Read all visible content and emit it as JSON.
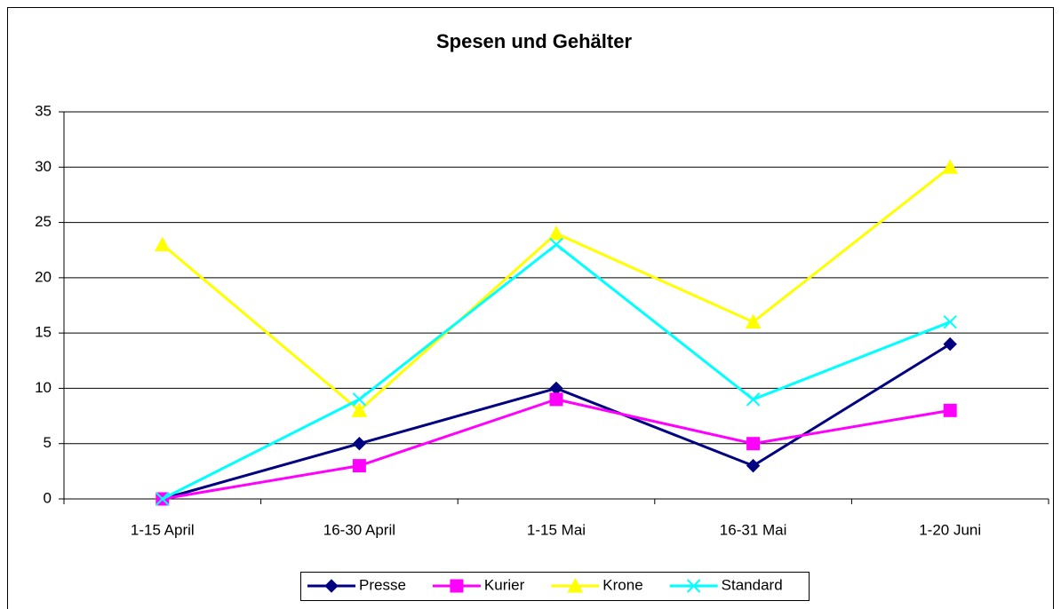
{
  "chart_data": {
    "type": "line",
    "title": "Spesen und Gehälter",
    "categories": [
      "1-15 April",
      "16-30 April",
      "1-15 Mai",
      "16-31 Mai",
      "1-20 Juni"
    ],
    "series": [
      {
        "name": "Presse",
        "color": "#000080",
        "marker": "diamond",
        "values": [
          0,
          5,
          10,
          3,
          14
        ]
      },
      {
        "name": "Kurier",
        "color": "#ff00ff",
        "marker": "square",
        "values": [
          0,
          3,
          9,
          5,
          8
        ]
      },
      {
        "name": "Krone",
        "color": "#ffff00",
        "marker": "triangle",
        "values": [
          23,
          8,
          24,
          16,
          30
        ]
      },
      {
        "name": "Standard",
        "color": "#00ffff",
        "marker": "x",
        "values": [
          0,
          9,
          23,
          9,
          16
        ]
      }
    ],
    "ylim": [
      0,
      35
    ],
    "yticks": [
      0,
      5,
      10,
      15,
      20,
      25,
      30,
      35
    ],
    "grid": true,
    "legend": "bottom"
  }
}
